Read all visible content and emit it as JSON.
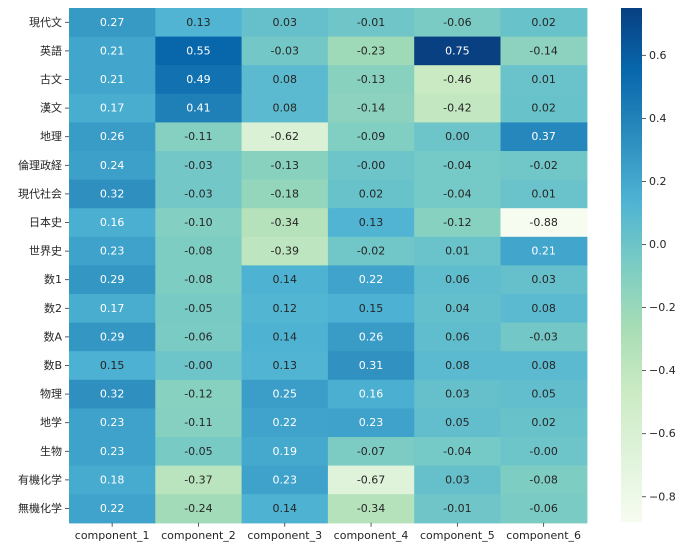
{
  "chart_data": {
    "type": "heatmap",
    "title": "",
    "xlabel": "",
    "ylabel": "",
    "x_categories": [
      "component_1",
      "component_2",
      "component_3",
      "component_4",
      "component_5",
      "component_6"
    ],
    "y_categories": [
      "現代文",
      "英語",
      "古文",
      "漢文",
      "地理",
      "倫理政経",
      "現代社会",
      "日本史",
      "世界史",
      "数1",
      "数2",
      "数A",
      "数B",
      "物理",
      "地学",
      "生物",
      "有機化学",
      "無機化学"
    ],
    "values": [
      [
        0.27,
        0.13,
        0.03,
        -0.01,
        -0.06,
        0.02
      ],
      [
        0.21,
        0.55,
        -0.03,
        -0.23,
        0.75,
        -0.14
      ],
      [
        0.21,
        0.49,
        0.08,
        -0.13,
        -0.46,
        0.01
      ],
      [
        0.17,
        0.41,
        0.08,
        -0.14,
        -0.42,
        0.02
      ],
      [
        0.26,
        -0.11,
        -0.62,
        -0.09,
        0.0,
        0.37
      ],
      [
        0.24,
        -0.03,
        -0.13,
        -0.0,
        -0.04,
        -0.02
      ],
      [
        0.32,
        -0.03,
        -0.18,
        0.02,
        -0.04,
        0.01
      ],
      [
        0.16,
        -0.1,
        -0.34,
        0.13,
        -0.12,
        -0.88
      ],
      [
        0.23,
        -0.08,
        -0.39,
        -0.02,
        0.01,
        0.21
      ],
      [
        0.29,
        -0.08,
        0.14,
        0.22,
        0.06,
        0.03
      ],
      [
        0.17,
        -0.05,
        0.12,
        0.15,
        0.04,
        0.08
      ],
      [
        0.29,
        -0.06,
        0.14,
        0.26,
        0.06,
        -0.03
      ],
      [
        0.15,
        -0.0,
        0.13,
        0.31,
        0.08,
        0.08
      ],
      [
        0.32,
        -0.12,
        0.25,
        0.16,
        0.03,
        0.05
      ],
      [
        0.23,
        -0.11,
        0.22,
        0.23,
        0.05,
        0.02
      ],
      [
        0.23,
        -0.05,
        0.19,
        -0.07,
        -0.04,
        -0.0
      ],
      [
        0.18,
        -0.37,
        0.23,
        -0.67,
        0.03,
        -0.08
      ],
      [
        0.22,
        -0.24,
        0.14,
        -0.34,
        -0.01,
        -0.06
      ]
    ],
    "value_labels": [
      [
        "0.27",
        "0.13",
        "0.03",
        "-0.01",
        "-0.06",
        "0.02"
      ],
      [
        "0.21",
        "0.55",
        "-0.03",
        "-0.23",
        "0.75",
        "-0.14"
      ],
      [
        "0.21",
        "0.49",
        "0.08",
        "-0.13",
        "-0.46",
        "0.01"
      ],
      [
        "0.17",
        "0.41",
        "0.08",
        "-0.14",
        "-0.42",
        "0.02"
      ],
      [
        "0.26",
        "-0.11",
        "-0.62",
        "-0.09",
        "0.00",
        "0.37"
      ],
      [
        "0.24",
        "-0.03",
        "-0.13",
        "-0.00",
        "-0.04",
        "-0.02"
      ],
      [
        "0.32",
        "-0.03",
        "-0.18",
        "0.02",
        "-0.04",
        "0.01"
      ],
      [
        "0.16",
        "-0.10",
        "-0.34",
        "0.13",
        "-0.12",
        "-0.88"
      ],
      [
        "0.23",
        "-0.08",
        "-0.39",
        "-0.02",
        "0.01",
        "0.21"
      ],
      [
        "0.29",
        "-0.08",
        "0.14",
        "0.22",
        "0.06",
        "0.03"
      ],
      [
        "0.17",
        "-0.05",
        "0.12",
        "0.15",
        "0.04",
        "0.08"
      ],
      [
        "0.29",
        "-0.06",
        "0.14",
        "0.26",
        "0.06",
        "-0.03"
      ],
      [
        "0.15",
        "-0.00",
        "0.13",
        "0.31",
        "0.08",
        "0.08"
      ],
      [
        "0.32",
        "-0.12",
        "0.25",
        "0.16",
        "0.03",
        "0.05"
      ],
      [
        "0.23",
        "-0.11",
        "0.22",
        "0.23",
        "0.05",
        "0.02"
      ],
      [
        "0.23",
        "-0.05",
        "0.19",
        "-0.07",
        "-0.04",
        "-0.00"
      ],
      [
        "0.18",
        "-0.37",
        "0.23",
        "-0.67",
        "0.03",
        "-0.08"
      ],
      [
        "0.22",
        "-0.24",
        "0.14",
        "-0.34",
        "-0.01",
        "-0.06"
      ]
    ],
    "colorscale": "YlGnBu",
    "colorscale_stops": [
      "#f7fcf0",
      "#e0f3db",
      "#ccebc5",
      "#a8ddb5",
      "#7bccc4",
      "#4eb3d3",
      "#2b8cbe",
      "#0868ac",
      "#084081"
    ],
    "vmin": -0.88,
    "vmax": 0.75,
    "colorbar": {
      "ticks": [
        0.6,
        0.4,
        0.2,
        0.0,
        -0.2,
        -0.4,
        -0.6,
        -0.8
      ],
      "tick_labels": [
        "0.6",
        "0.4",
        "0.2",
        "0.0",
        "−0.2",
        "−0.4",
        "−0.6",
        "−0.8"
      ],
      "placement": "right"
    },
    "grid": false
  }
}
